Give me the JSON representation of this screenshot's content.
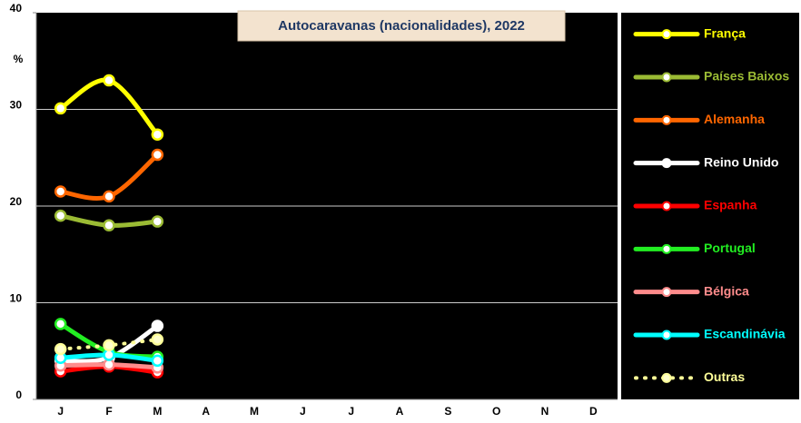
{
  "chart_data": {
    "type": "line",
    "title": "Autocaravanas (nacionalidades), 2022",
    "ylabel": "%",
    "categories": [
      "J",
      "F",
      "M",
      "A",
      "M",
      "J",
      "J",
      "A",
      "S",
      "O",
      "N",
      "D"
    ],
    "ylim": [
      0,
      40
    ],
    "yticks": [
      0,
      10,
      20,
      30,
      40
    ],
    "grid": true,
    "legend": "right",
    "series": [
      {
        "name": "França",
        "color": "#ffff00",
        "values": [
          30.1,
          33.0,
          27.4,
          null,
          null,
          null,
          null,
          null,
          null,
          null,
          null,
          null
        ]
      },
      {
        "name": "Países Baixos",
        "color": "#9bbb34",
        "values": [
          19.0,
          18.0,
          18.4,
          null,
          null,
          null,
          null,
          null,
          null,
          null,
          null,
          null
        ]
      },
      {
        "name": "Alemanha",
        "color": "#ff6600",
        "values": [
          21.5,
          21.0,
          25.3,
          null,
          null,
          null,
          null,
          null,
          null,
          null,
          null,
          null
        ]
      },
      {
        "name": "Reino Unido",
        "color": "#ffffff",
        "values": [
          4.0,
          4.3,
          7.6,
          null,
          null,
          null,
          null,
          null,
          null,
          null,
          null,
          null
        ]
      },
      {
        "name": "Espanha",
        "color": "#ff0000",
        "values": [
          2.9,
          3.4,
          2.8,
          null,
          null,
          null,
          null,
          null,
          null,
          null,
          null,
          null
        ]
      },
      {
        "name": "Portugal",
        "color": "#22ee22",
        "values": [
          7.8,
          4.9,
          4.4,
          null,
          null,
          null,
          null,
          null,
          null,
          null,
          null,
          null
        ]
      },
      {
        "name": "Bélgica",
        "color": "#ff8c8c",
        "values": [
          3.5,
          3.6,
          3.3,
          null,
          null,
          null,
          null,
          null,
          null,
          null,
          null,
          null
        ]
      },
      {
        "name": "Escandinávia",
        "color": "#00ffff",
        "values": [
          4.3,
          4.6,
          4.0,
          null,
          null,
          null,
          null,
          null,
          null,
          null,
          null,
          null
        ]
      },
      {
        "name": "Outras",
        "color": "#ffff99",
        "dashed": true,
        "values": [
          5.2,
          5.6,
          6.2,
          null,
          null,
          null,
          null,
          null,
          null,
          null,
          null,
          null
        ]
      }
    ]
  }
}
